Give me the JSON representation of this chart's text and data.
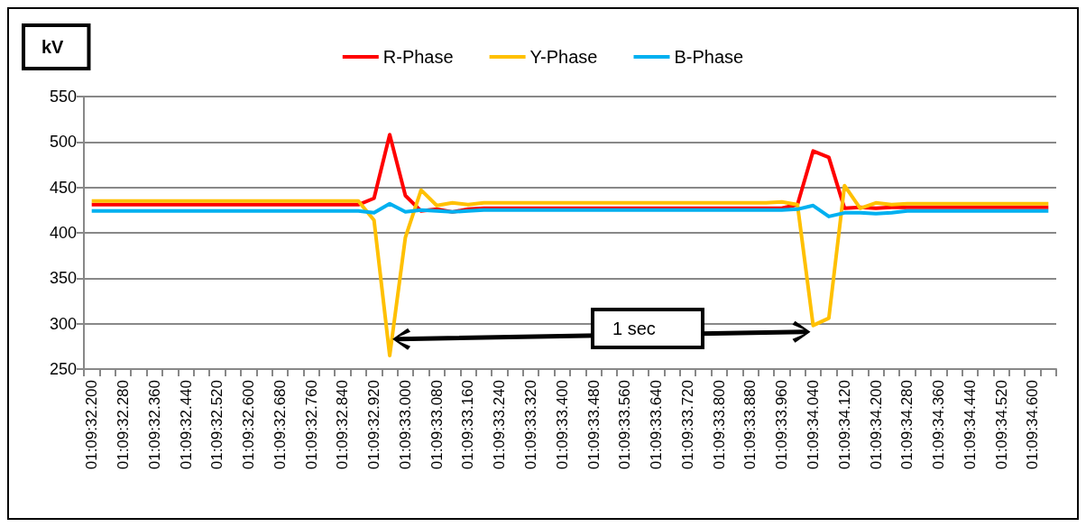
{
  "chart_data": {
    "type": "line",
    "ylabel": "kV",
    "categories": [
      "01:09:32.200",
      null,
      "01:09:32.280",
      null,
      "01:09:32.360",
      null,
      "01:09:32.440",
      null,
      "01:09:32.520",
      null,
      "01:09:32.600",
      null,
      "01:09:32.680",
      null,
      "01:09:32.760",
      null,
      "01:09:32.840",
      null,
      "01:09:32.920",
      null,
      "01:09:33.000",
      null,
      "01:09:33.080",
      null,
      "01:09:33.160",
      null,
      "01:09:33.240",
      null,
      "01:09:33.320",
      null,
      "01:09:33.400",
      null,
      "01:09:33.480",
      null,
      "01:09:33.560",
      null,
      "01:09:33.640",
      null,
      "01:09:33.720",
      null,
      "01:09:33.800",
      null,
      "01:09:33.880",
      null,
      "01:09:33.960",
      null,
      "01:09:34.040",
      null,
      "01:09:34.120",
      null,
      "01:09:34.200",
      null,
      "01:09:34.280",
      null,
      "01:09:34.360",
      null,
      "01:09:34.440",
      null,
      "01:09:34.520",
      null,
      "01:09:34.600",
      null
    ],
    "series": [
      {
        "name": "R-Phase",
        "color": "#ff0000",
        "values": [
          431,
          431,
          431,
          431,
          431,
          431,
          431,
          431,
          431,
          431,
          431,
          431,
          431,
          431,
          431,
          431,
          431,
          431,
          438,
          508,
          441,
          424,
          426,
          423,
          426,
          427,
          427,
          427,
          427,
          427,
          427,
          427,
          427,
          427,
          427,
          427,
          427,
          427,
          427,
          427,
          427,
          427,
          427,
          427,
          427,
          431,
          490,
          483,
          427,
          428,
          427,
          428,
          428,
          428,
          428,
          428,
          428,
          428,
          428,
          428,
          428,
          428
        ]
      },
      {
        "name": "Y-Phase",
        "color": "#ffc000",
        "values": [
          435,
          435,
          435,
          435,
          435,
          435,
          435,
          435,
          435,
          435,
          435,
          435,
          435,
          435,
          435,
          435,
          435,
          435,
          414,
          265,
          395,
          447,
          430,
          433,
          431,
          433,
          433,
          433,
          433,
          433,
          433,
          433,
          433,
          433,
          433,
          433,
          433,
          433,
          433,
          433,
          433,
          433,
          433,
          433,
          434,
          431,
          298,
          306,
          452,
          427,
          433,
          431,
          432,
          432,
          432,
          432,
          432,
          432,
          432,
          432,
          432,
          432
        ]
      },
      {
        "name": "B-Phase",
        "color": "#00b0f0",
        "values": [
          424,
          424,
          424,
          424,
          424,
          424,
          424,
          424,
          424,
          424,
          424,
          424,
          424,
          424,
          424,
          424,
          424,
          424,
          422,
          432,
          423,
          425,
          424,
          423,
          424,
          425,
          425,
          425,
          425,
          425,
          425,
          425,
          425,
          425,
          425,
          425,
          425,
          425,
          425,
          425,
          425,
          425,
          425,
          425,
          425,
          426,
          430,
          418,
          422,
          422,
          421,
          422,
          424,
          424,
          424,
          424,
          424,
          424,
          424,
          424,
          424,
          424
        ]
      }
    ],
    "ylim": [
      250,
      550
    ],
    "yticks": [
      250,
      300,
      350,
      400,
      450,
      500,
      550
    ],
    "grid": "y",
    "legend": "top",
    "marker": "none",
    "line_style": "solid",
    "annotations": [
      "1 sec"
    ]
  }
}
